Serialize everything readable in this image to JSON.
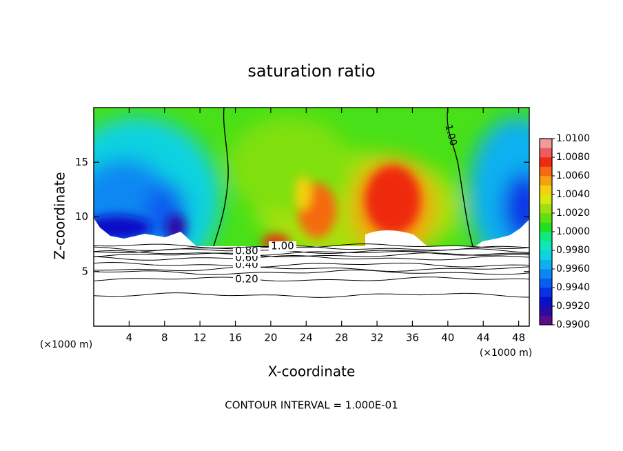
{
  "chart_data": {
    "type": "contour",
    "title": "saturation ratio",
    "x_label": "X-coordinate",
    "y_label": "Z-coordinate",
    "x_unit": "(×1000 m)",
    "footer": "CONTOUR INTERVAL = 1.000E-01",
    "xlim": [
      0,
      49.2
    ],
    "xticks": [
      4,
      8,
      12,
      16,
      20,
      24,
      28,
      32,
      36,
      40,
      44,
      48
    ],
    "ylim": [
      0,
      20
    ],
    "yticks": [
      5,
      10,
      15
    ],
    "contour_labels": [
      {
        "value": 0.2,
        "label": "0.20"
      },
      {
        "value": 0.4,
        "label": "0.40"
      },
      {
        "value": 0.6,
        "label": "0.60"
      },
      {
        "value": 0.8,
        "label": "0.80"
      },
      {
        "value": 1,
        "label": "1.00"
      }
    ],
    "colorbar": {
      "lim": [
        0.99,
        1.01
      ],
      "ticks": [
        {
          "value": 0.99,
          "label": "0.9900"
        },
        {
          "value": 0.992,
          "label": "0.9920"
        },
        {
          "value": 0.994,
          "label": "0.9940"
        },
        {
          "value": 0.996,
          "label": "0.9960"
        },
        {
          "value": 0.998,
          "label": "0.9980"
        },
        {
          "value": 1.0,
          "label": "1.0000"
        },
        {
          "value": 1.002,
          "label": "1.0020"
        },
        {
          "value": 1.004,
          "label": "1.0040"
        },
        {
          "value": 1.006,
          "label": "1.0060"
        },
        {
          "value": 1.008,
          "label": "1.0080"
        },
        {
          "value": 1.01,
          "label": "1.0100"
        }
      ],
      "colors": [
        "#5a0c8c",
        "#2a0aa8",
        "#0a10c8",
        "#0830e6",
        "#0a5cf0",
        "#0a88f2",
        "#10b0f0",
        "#10d2e0",
        "#10e6b8",
        "#10e880",
        "#20e020",
        "#60e010",
        "#a0e010",
        "#d8e810",
        "#f4d010",
        "#f4a010",
        "#f46a10",
        "#ee2a10",
        "#f05a60",
        "#f09a9a"
      ]
    }
  }
}
